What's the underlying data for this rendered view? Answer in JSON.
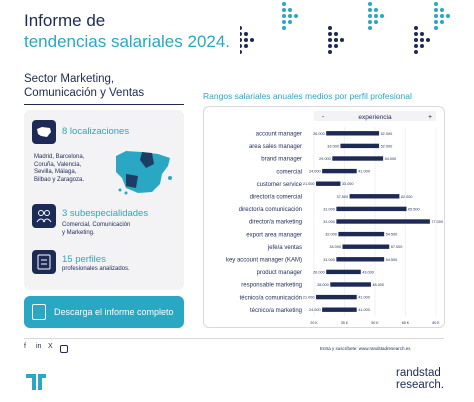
{
  "header": {
    "title_line1": "Informe de",
    "title_line2": "tendencias salariales 2024."
  },
  "section": {
    "title_line1": "Sector Marketing,",
    "title_line2": "Comunicación y Ventas"
  },
  "stats": {
    "localizaciones_title": "8 localizaciones",
    "localizaciones_list": [
      "Madrid, Barcelona,",
      "Coruña, Valencia,",
      "Sevilla, Málaga,",
      "Bilbao y Zaragoza."
    ],
    "subesp_title": "3 subespecialidades",
    "subesp_list": [
      "Comercial, Comunicación",
      "y Marketing."
    ],
    "perfiles_title": "15 perfiles",
    "perfiles_sub": "profesionales analizados."
  },
  "cta": {
    "label": "Descarga el informe completo"
  },
  "chart_title": "Rangos salariales anuales medios por perfil profesional",
  "chart_data": {
    "type": "bar",
    "legend": {
      "minus": "-",
      "label": "experiencia",
      "plus": "+"
    },
    "categories": [
      "account manager",
      "area sales manager",
      "brand manager",
      "comercial",
      "customer service",
      "director/a comercial",
      "director/a comunicación",
      "director/a marketing",
      "export area manager",
      "jefe/a ventas",
      "key account manager (KAM)",
      "product manager",
      "responsable marketing",
      "técnico/a comunicación",
      "técnico/a marketing"
    ],
    "min_labels": [
      "26.000",
      "33.000",
      "29.000",
      "24.000",
      "21.000",
      "37.500",
      "31.000",
      "31.000",
      "32.000",
      "34.000",
      "31.000",
      "26.000",
      "28.000",
      "21.000",
      "24.000"
    ],
    "max_labels": [
      "52.000",
      "52.000",
      "54.000",
      "41.000",
      "33.000",
      "62.000",
      "65.500",
      "77.000",
      "54.500",
      "57.000",
      "54.500",
      "43.000",
      "48.000",
      "41.000",
      "41.000"
    ],
    "min": [
      26000,
      33000,
      29000,
      24000,
      21000,
      37500,
      31000,
      31000,
      32000,
      34000,
      31000,
      26000,
      28000,
      21000,
      24000
    ],
    "max": [
      52000,
      52000,
      54000,
      41000,
      33000,
      62000,
      65500,
      77000,
      54500,
      57000,
      54500,
      43000,
      48000,
      41000,
      41000
    ],
    "xlim": [
      20000,
      80000
    ],
    "x_ticks": [
      "20 K",
      "35 K",
      "50 K",
      "65 K",
      "80 K"
    ],
    "colors": {
      "bar": "#1c2a55",
      "minus_cell": "#1c2a55",
      "plus_cell": "#ffffff"
    }
  },
  "footer": {
    "social": [
      "f",
      "in",
      "X",
      "ig"
    ],
    "subscribe": "Entra y suscríbete: www.randstadresearch.es",
    "brand_line1": "randstad",
    "brand_line2": "research."
  },
  "colors": {
    "navy": "#1c2a55",
    "teal": "#2aa7c3",
    "card": "#f3f3f5"
  }
}
